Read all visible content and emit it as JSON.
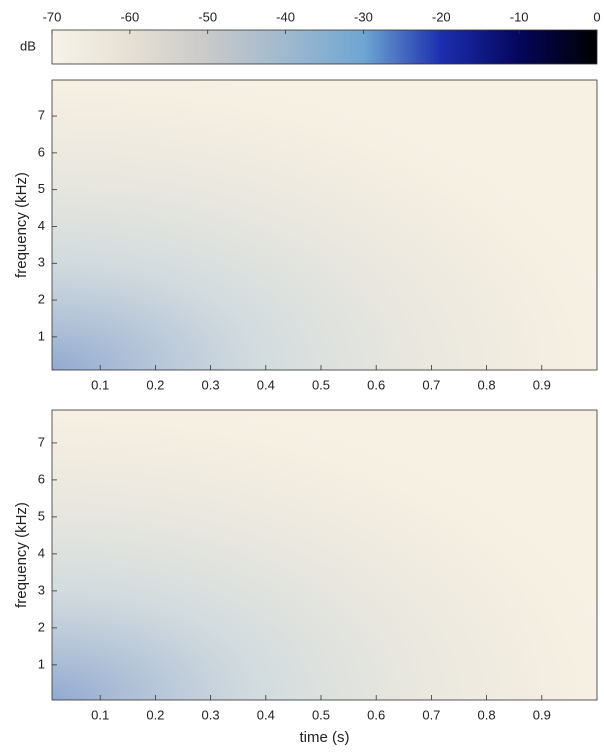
{
  "chart_data": [
    {
      "type": "colorbar",
      "ylabel": "dB",
      "xlim": [
        -70,
        0
      ],
      "xticks": [
        -70,
        -60,
        -50,
        -40,
        -30,
        -20,
        -10,
        0
      ],
      "colormap": [
        "#f8f3e8",
        "#e6e0d4",
        "#c9c9c9",
        "#9fb9cf",
        "#6fa6d2",
        "#1c2fb0",
        "#05055c",
        "#000000"
      ]
    },
    {
      "type": "heatmap",
      "ylabel": "frequency (kHz)",
      "xlim": [
        0.0127,
        1.0
      ],
      "ylim": [
        0.1,
        7.98
      ],
      "xticks": [
        0.1,
        0.2,
        0.3,
        0.4,
        0.5,
        0.6,
        0.7,
        0.8,
        0.9
      ],
      "yticks": [
        1,
        2,
        3,
        4,
        5,
        6,
        7
      ]
    },
    {
      "type": "heatmap",
      "ylabel": "frequency (kHz)",
      "xlabel": "time (s)",
      "xlim": [
        0.0127,
        1.0
      ],
      "ylim": [
        0.05,
        7.89
      ],
      "xticks": [
        0.1,
        0.2,
        0.3,
        0.4,
        0.5,
        0.6,
        0.7,
        0.8,
        0.9
      ],
      "yticks": [
        1,
        2,
        3,
        4,
        5,
        6,
        7
      ]
    }
  ]
}
